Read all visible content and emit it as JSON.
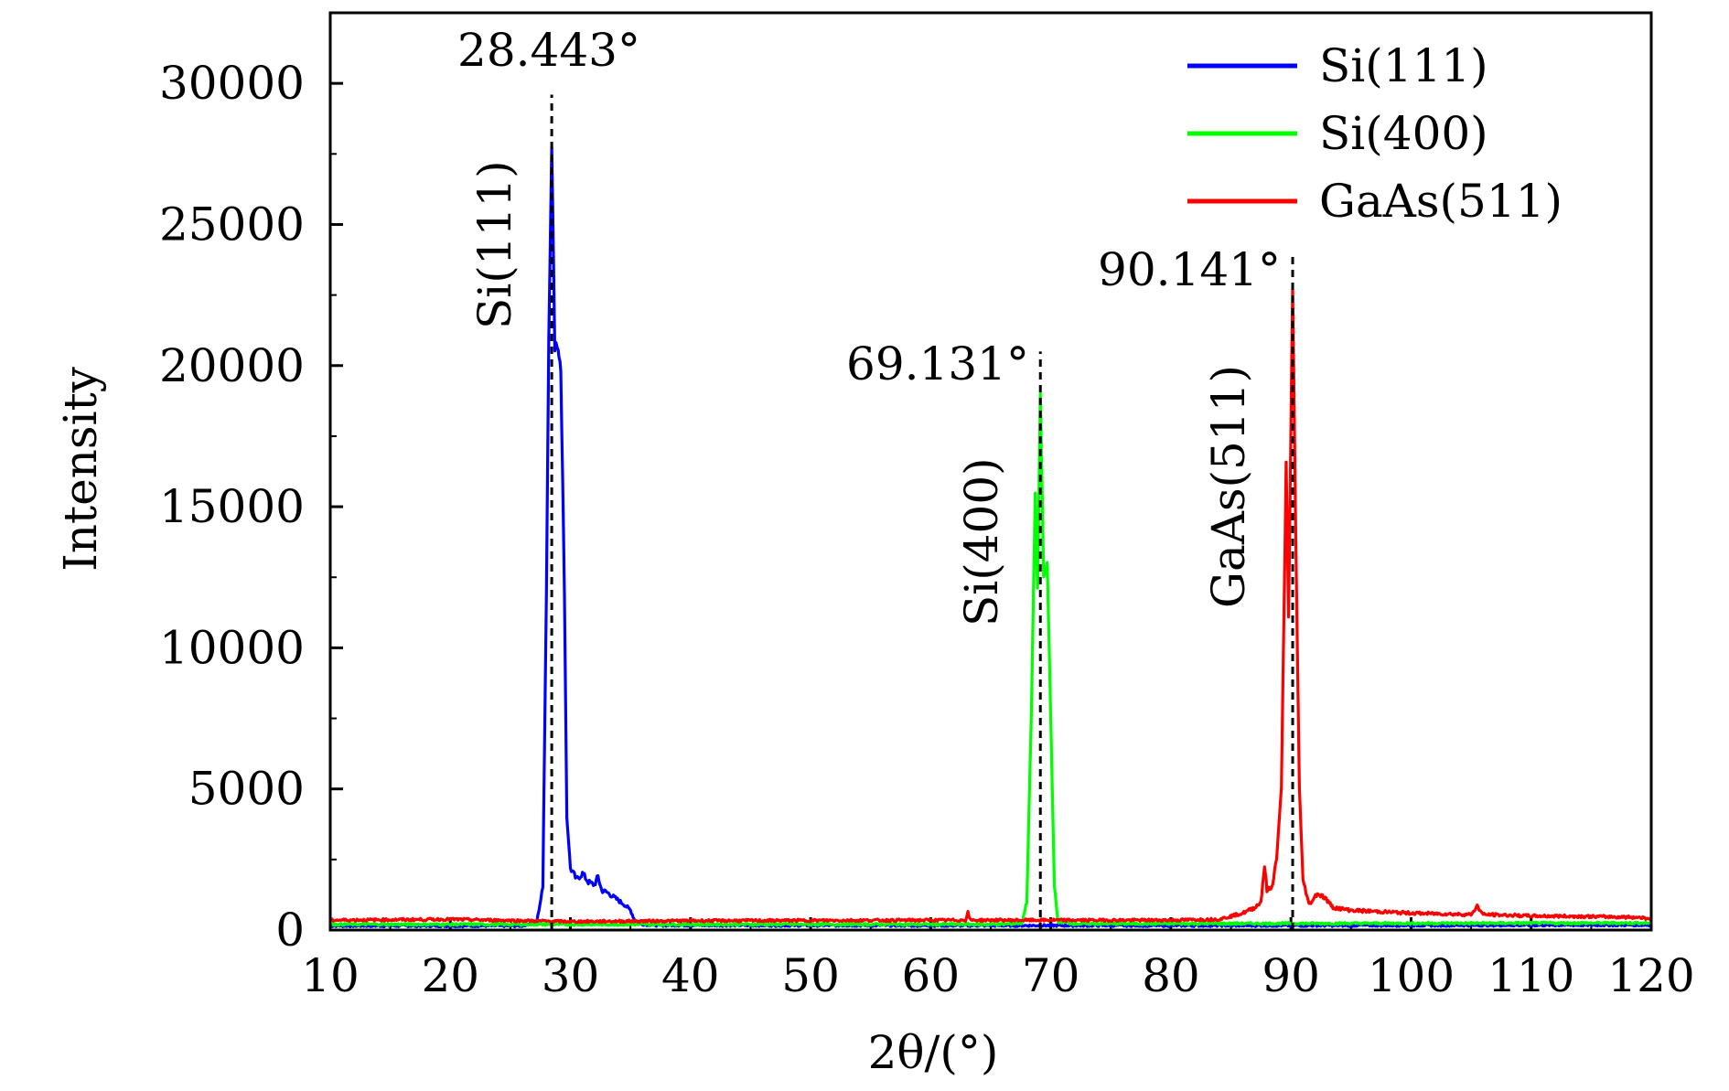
{
  "chart_data": {
    "type": "line",
    "xlabel": "2θ/(°)",
    "ylabel": "Intensity",
    "xlim": [
      10,
      120
    ],
    "ylim": [
      0,
      32500
    ],
    "xticks": [
      10,
      20,
      30,
      40,
      50,
      60,
      70,
      80,
      90,
      100,
      110,
      120
    ],
    "yticks": [
      0,
      5000,
      10000,
      15000,
      20000,
      25000,
      30000
    ],
    "series": [
      {
        "name": "Si(111)",
        "color": "#0000ff",
        "points": [
          [
            10,
            150
          ],
          [
            26,
            150
          ],
          [
            27.2,
            300
          ],
          [
            27.7,
            1500
          ],
          [
            28.0,
            12000
          ],
          [
            28.2,
            21000
          ],
          [
            28.443,
            28000
          ],
          [
            28.7,
            20500
          ],
          [
            28.9,
            20800
          ],
          [
            29.2,
            20000
          ],
          [
            29.5,
            12000
          ],
          [
            29.7,
            4000
          ],
          [
            30,
            2200
          ],
          [
            30.5,
            1800
          ],
          [
            31,
            2000
          ],
          [
            31.5,
            1700
          ],
          [
            32,
            1600
          ],
          [
            32.3,
            1900
          ],
          [
            32.6,
            1400
          ],
          [
            33,
            1350
          ],
          [
            33.5,
            1200
          ],
          [
            34,
            1050
          ],
          [
            34.5,
            900
          ],
          [
            35,
            700
          ],
          [
            35.3,
            400
          ],
          [
            35.6,
            220
          ],
          [
            37,
            170
          ],
          [
            60,
            160
          ],
          [
            90,
            160
          ],
          [
            120,
            180
          ]
        ]
      },
      {
        "name": "Si(400)",
        "color": "#00ff00",
        "points": [
          [
            10,
            200
          ],
          [
            66,
            200
          ],
          [
            67.6,
            250
          ],
          [
            68.0,
            1000
          ],
          [
            68.4,
            8000
          ],
          [
            68.7,
            15500
          ],
          [
            68.9,
            12000
          ],
          [
            69.131,
            19000
          ],
          [
            69.4,
            12500
          ],
          [
            69.7,
            13000
          ],
          [
            70.0,
            7500
          ],
          [
            70.3,
            1500
          ],
          [
            70.6,
            300
          ],
          [
            72,
            220
          ],
          [
            120,
            250
          ]
        ]
      },
      {
        "name": "GaAs(511)",
        "color": "#ff0000",
        "points": [
          [
            10,
            350
          ],
          [
            20,
            380
          ],
          [
            30,
            300
          ],
          [
            40,
            330
          ],
          [
            50,
            340
          ],
          [
            60,
            350
          ],
          [
            62.9,
            350
          ],
          [
            63.1,
            620
          ],
          [
            63.3,
            350
          ],
          [
            70,
            350
          ],
          [
            80,
            350
          ],
          [
            84,
            380
          ],
          [
            86,
            600
          ],
          [
            87,
            800
          ],
          [
            87.5,
            1000
          ],
          [
            87.8,
            2300
          ],
          [
            88.0,
            1400
          ],
          [
            88.4,
            1500
          ],
          [
            88.8,
            2500
          ],
          [
            89.2,
            5000
          ],
          [
            89.6,
            16500
          ],
          [
            89.8,
            11000
          ],
          [
            90.141,
            22800
          ],
          [
            90.4,
            14000
          ],
          [
            90.7,
            5000
          ],
          [
            91,
            1800
          ],
          [
            91.5,
            900
          ],
          [
            92.2,
            1300
          ],
          [
            92.8,
            1150
          ],
          [
            93.5,
            800
          ],
          [
            95,
            700
          ],
          [
            100,
            600
          ],
          [
            105,
            550
          ],
          [
            105.5,
            850
          ],
          [
            106,
            550
          ],
          [
            110,
            500
          ],
          [
            115,
            480
          ],
          [
            119,
            450
          ],
          [
            120,
            400
          ]
        ]
      }
    ],
    "legend": {
      "position": "top-right",
      "entries": [
        "Si(111)",
        "Si(400)",
        "GaAs(511)"
      ]
    },
    "annotations": [
      {
        "text": "28.443°",
        "x": 28.443,
        "peak": 28000,
        "line_top": 29600
      },
      {
        "text": "69.131°",
        "x": 69.131,
        "peak": 19000,
        "line_top": 20500
      },
      {
        "text": "90.141°",
        "x": 90.141,
        "peak": 22800,
        "line_top": 24000
      }
    ],
    "peak_labels": [
      "Si(111)",
      "Si(400)",
      "GaAs(511)"
    ]
  }
}
